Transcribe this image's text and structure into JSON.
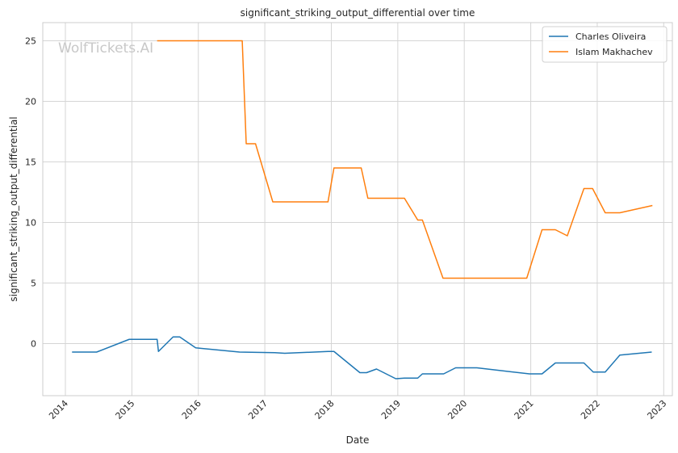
{
  "watermark": "WolfTickets.AI",
  "chart_data": {
    "type": "line",
    "title": "significant_striking_output_differential over time",
    "xlabel": "Date",
    "ylabel": "significant_striking_output_differential",
    "xlim": [
      2013.66,
      2023.13
    ],
    "ylim": [
      -4.3,
      26.5
    ],
    "xticks": [
      2014,
      2015,
      2016,
      2017,
      2018,
      2019,
      2020,
      2021,
      2022,
      2023
    ],
    "xtick_labels": [
      "2014",
      "2015",
      "2016",
      "2017",
      "2018",
      "2019",
      "2020",
      "2021",
      "2022",
      "2023"
    ],
    "yticks": [
      0,
      5,
      10,
      15,
      20,
      25
    ],
    "ytick_labels": [
      "0",
      "5",
      "10",
      "15",
      "20",
      "25"
    ],
    "grid": true,
    "legend_position": "top-right",
    "colors": {
      "Charles Oliveira": "#1f77b4",
      "Islam Makhachev": "#ff7f0e",
      "grid": "#d5d5d5"
    },
    "series": [
      {
        "name": "Charles Oliveira",
        "color": "#1f77b4",
        "x": [
          2014.1,
          2014.47,
          2014.96,
          2015.38,
          2015.4,
          2015.62,
          2015.72,
          2015.96,
          2016.62,
          2017.15,
          2017.3,
          2017.95,
          2018.04,
          2018.43,
          2018.53,
          2018.68,
          2018.97,
          2019.1,
          2019.3,
          2019.37,
          2019.69,
          2019.87,
          2020.19,
          2020.98,
          2021.17,
          2021.37,
          2021.8,
          2021.94,
          2022.12,
          2022.34,
          2022.82
        ],
        "y": [
          -0.7,
          -0.7,
          0.35,
          0.35,
          -0.65,
          0.55,
          0.55,
          -0.35,
          -0.7,
          -0.75,
          -0.8,
          -0.65,
          -0.65,
          -2.4,
          -2.4,
          -2.1,
          -2.9,
          -2.85,
          -2.85,
          -2.5,
          -2.5,
          -2.0,
          -2.0,
          -2.5,
          -2.5,
          -1.6,
          -1.6,
          -2.35,
          -2.35,
          -0.95,
          -0.7
        ]
      },
      {
        "name": "Islam Makhachev",
        "color": "#ff7f0e",
        "x": [
          2015.38,
          2016.66,
          2016.72,
          2016.86,
          2017.12,
          2017.95,
          2018.04,
          2018.45,
          2018.55,
          2019.1,
          2019.3,
          2019.37,
          2019.68,
          2020.94,
          2021.17,
          2021.37,
          2021.55,
          2021.8,
          2021.93,
          2022.12,
          2022.34,
          2022.83
        ],
        "y": [
          25.0,
          25.0,
          16.5,
          16.5,
          11.7,
          11.7,
          14.5,
          14.5,
          12.0,
          12.0,
          10.2,
          10.2,
          5.4,
          5.4,
          9.4,
          9.4,
          8.9,
          12.8,
          12.8,
          10.8,
          10.8,
          11.4
        ]
      }
    ]
  }
}
